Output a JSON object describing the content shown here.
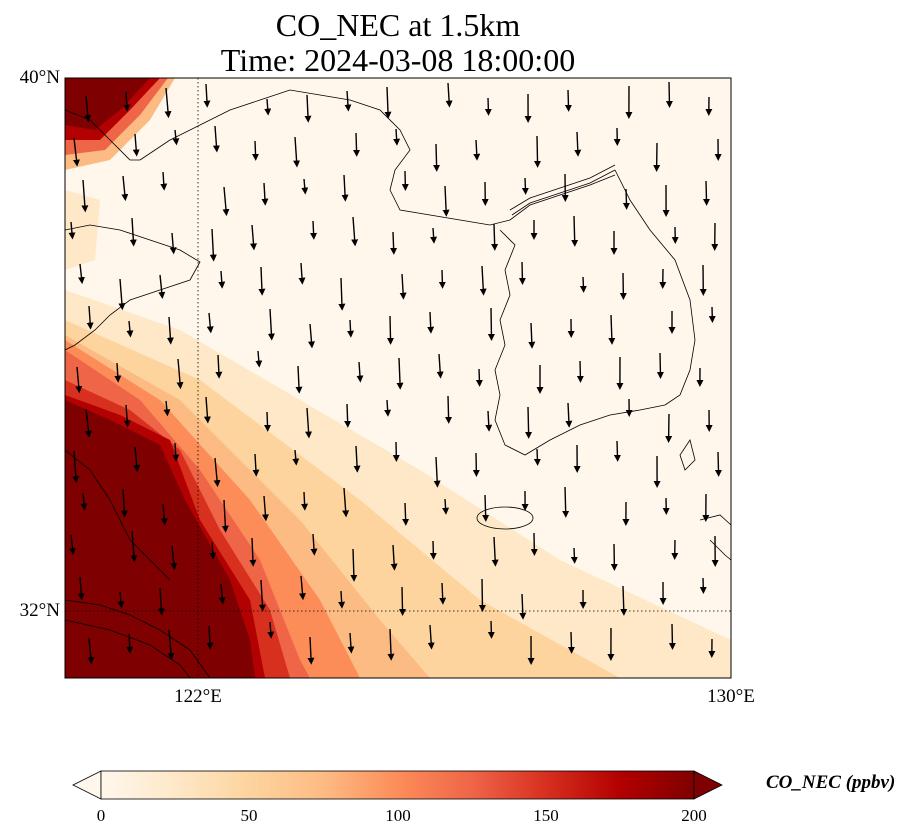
{
  "title": {
    "line1": "CO_NEC at 1.5km",
    "line2": "Time: 2024-03-08 18:00:00"
  },
  "map": {
    "lat_labels": [
      "40°N",
      "32°N"
    ],
    "lon_labels": [
      "122°E",
      "130°E"
    ],
    "extent": {
      "lon": [
        120,
        130
      ],
      "lat": [
        31,
        40
      ]
    },
    "gridlines": {
      "lon": [
        122
      ],
      "lat": [
        32
      ],
      "style": "dotted"
    },
    "coastlines": "on",
    "vectors": "wind arrows pointing mostly south / south-southeast"
  },
  "colorbar": {
    "label": "CO_NEC (ppbv)",
    "ticks": [
      "0",
      "50",
      "100",
      "150",
      "200"
    ],
    "range": [
      0,
      200
    ],
    "extend": "both",
    "colormap": "OrRd",
    "colors": [
      "#fff7ec",
      "#fee8c8",
      "#fdd49e",
      "#fdbb84",
      "#fc8d59",
      "#ef6548",
      "#d7301f",
      "#b30000",
      "#7f0000"
    ]
  },
  "field": {
    "description_of_values": "High CO (>200 ppbv) along the west/southwest edge and the northwest corner, decreasing to near 0 ppbv over the Korean peninsula and the east."
  }
}
